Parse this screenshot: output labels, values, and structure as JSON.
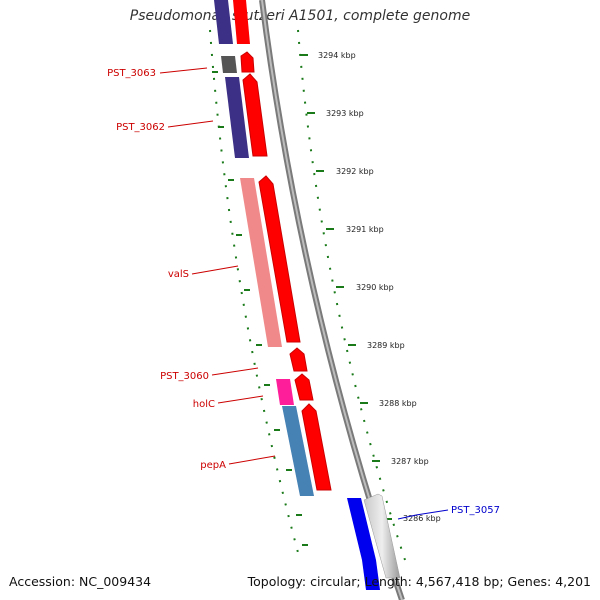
{
  "header": {
    "title": "Pseudomonas stutzeri A1501, complete genome"
  },
  "footer": {
    "accession": "Accession: NC_009434",
    "summary": "Topology: circular; Length: 4,567,418 bp; Genes: 4,201"
  },
  "scale": {
    "ticks": [
      {
        "label": "3294 kbp"
      },
      {
        "label": "3293 kbp"
      },
      {
        "label": "3292 kbp"
      },
      {
        "label": "3291 kbp"
      },
      {
        "label": "3290 kbp"
      },
      {
        "label": "3289 kbp"
      },
      {
        "label": "3288 kbp"
      },
      {
        "label": "3287 kbp"
      },
      {
        "label": "3286 kbp"
      }
    ]
  },
  "genes": [
    {
      "name": "PST_3063",
      "color": "#cc0000"
    },
    {
      "name": "PST_3062",
      "color": "#cc0000"
    },
    {
      "name": "valS",
      "color": "#cc0000"
    },
    {
      "name": "PST_3060",
      "color": "#cc0000"
    },
    {
      "name": "holC",
      "color": "#cc0000"
    },
    {
      "name": "pepA",
      "color": "#cc0000"
    },
    {
      "name": "PST_3057",
      "color": "#0000cc"
    }
  ],
  "colors": {
    "cds_forward": "#ff0000",
    "cds_reverse": "#0000ee",
    "tick_green": "#1a7a1a"
  }
}
